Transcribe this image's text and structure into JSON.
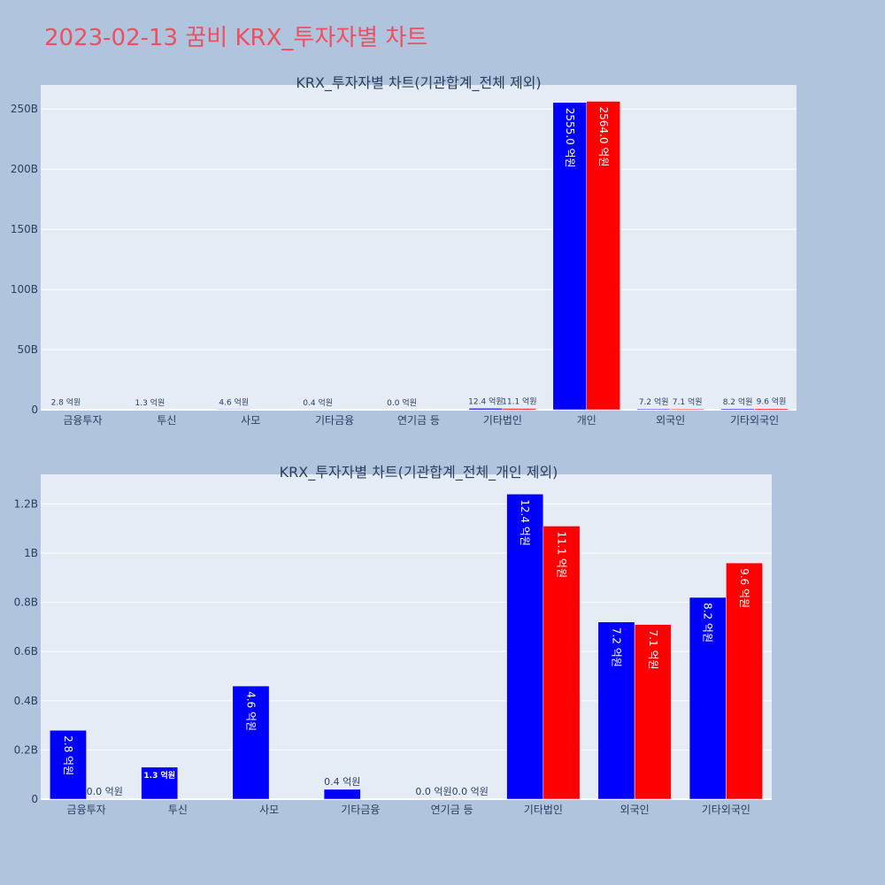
{
  "page": {
    "title": "2023-02-13 꿈비 KRX_투자자별 차트"
  },
  "colors": {
    "background": "#b0c4de",
    "plot_background": "#e5ecf6",
    "buy": "#0000ff",
    "sell": "#ff0000",
    "title": "#ef4f5f",
    "axis_text": "#2a3f5f"
  },
  "chart_data": [
    {
      "type": "bar",
      "title": "KRX_투자자별 차트(기관합계_전체 제외)",
      "categories": [
        "금융투자",
        "투신",
        "사모",
        "기타금융",
        "연기금 등",
        "기타법인",
        "개인",
        "외국인",
        "기타외국인"
      ],
      "series": [
        {
          "color": "#0000ff",
          "values": [
            0.28,
            0.13,
            0.46,
            0.04,
            0.0,
            1.24,
            255.5,
            0.72,
            0.82
          ],
          "labels": [
            "2.8 억원",
            "1.3 억원",
            "4.6 억원",
            "0.4 억원",
            "0.0 억원",
            "12.4 억원",
            "2555.0 억원",
            "7.2 억원",
            "8.2 억원"
          ]
        },
        {
          "color": "#ff0000",
          "values": [
            0.0,
            null,
            null,
            null,
            0.0,
            1.11,
            256.4,
            0.71,
            0.96
          ],
          "labels": [
            "",
            "",
            "",
            "",
            "",
            "11.1 억원",
            "2564.0 억원",
            "7.1 억원",
            "9.6 억원"
          ]
        }
      ],
      "ylim": [
        0,
        270
      ],
      "yticks": [
        0,
        50,
        100,
        150,
        200,
        250
      ],
      "ytick_labels": [
        "0",
        "50B",
        "100B",
        "150B",
        "200B",
        "250B"
      ],
      "grid": true
    },
    {
      "type": "bar",
      "title": "KRX_투자자별 차트(기관합계_전체_개인 제외)",
      "categories": [
        "금융투자",
        "투신",
        "사모",
        "기타금융",
        "연기금 등",
        "기타법인",
        "외국인",
        "기타외국인"
      ],
      "series": [
        {
          "color": "#0000ff",
          "values": [
            0.28,
            0.13,
            0.46,
            0.04,
            0.0,
            1.24,
            0.72,
            0.82
          ],
          "labels": [
            "2.8 억원",
            "1.3 억원",
            "4.6 억원",
            "0.4 억원",
            "0.0 억원",
            "12.4 억원",
            "7.2 억원",
            "8.2 억원"
          ]
        },
        {
          "color": "#ff0000",
          "values": [
            0.0,
            null,
            null,
            null,
            0.0,
            1.11,
            0.71,
            0.96
          ],
          "labels": [
            "0.0 억원",
            "",
            "",
            "",
            "0.0 억원",
            "11.1 억원",
            "7.1 억원",
            "9.6 억원"
          ]
        }
      ],
      "ylim": [
        0,
        1.32
      ],
      "yticks": [
        0,
        0.2,
        0.4,
        0.6,
        0.8,
        1.0,
        1.2
      ],
      "ytick_labels": [
        "0",
        "0.2B",
        "0.4B",
        "0.6B",
        "0.8B",
        "1B",
        "1.2B"
      ],
      "grid": true
    }
  ]
}
